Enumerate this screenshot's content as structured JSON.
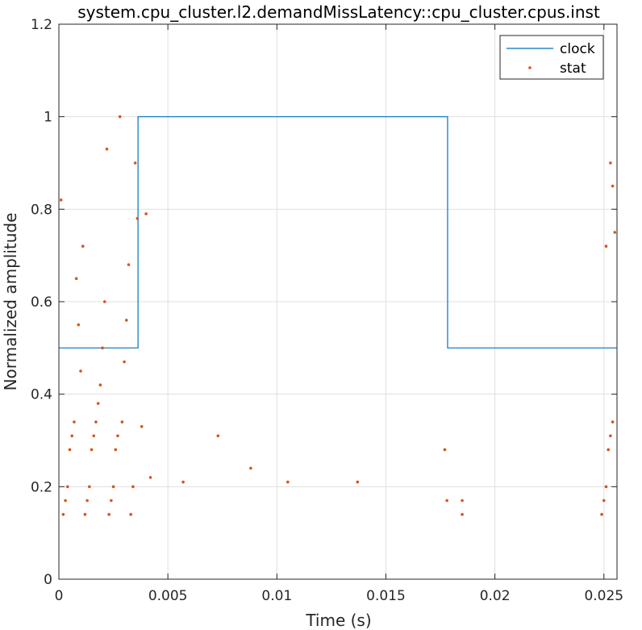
{
  "chart_data": {
    "type": "line",
    "title": "system.cpu_cluster.l2.demandMissLatency::cpu_cluster.cpus.inst",
    "xlabel": "Time (s)",
    "ylabel": "Normalized amplitude",
    "xlim": [
      0,
      0.0256
    ],
    "ylim": [
      0,
      1.2
    ],
    "x_ticks": [
      0,
      0.005,
      0.01,
      0.015,
      0.02,
      0.025
    ],
    "x_tick_labels": [
      "0",
      "0.005",
      "0.01",
      "0.015",
      "0.02",
      "0.025"
    ],
    "y_ticks": [
      0,
      0.2,
      0.4,
      0.6,
      0.8,
      1,
      1.2
    ],
    "y_tick_labels": [
      "0",
      "0.2",
      "0.4",
      "0.6",
      "0.8",
      "1",
      "1.2"
    ],
    "grid": true,
    "legend_position": "top-right",
    "series": [
      {
        "name": "clock",
        "kind": "step-line",
        "color": "#0072BD",
        "x": [
          0,
          0.00363,
          0.00363,
          0.01783,
          0.01783,
          0.0256
        ],
        "y": [
          0.5,
          0.5,
          1.0,
          1.0,
          0.5,
          0.5
        ]
      },
      {
        "name": "stat",
        "kind": "scatter",
        "color": "#D95319",
        "points": [
          [
            0.0001,
            0.82
          ],
          [
            0.0002,
            0.14
          ],
          [
            0.0003,
            0.17
          ],
          [
            0.0004,
            0.2
          ],
          [
            0.0005,
            0.28
          ],
          [
            0.0006,
            0.31
          ],
          [
            0.0007,
            0.34
          ],
          [
            0.0008,
            0.65
          ],
          [
            0.0009,
            0.55
          ],
          [
            0.001,
            0.45
          ],
          [
            0.0011,
            0.72
          ],
          [
            0.0012,
            0.14
          ],
          [
            0.0013,
            0.17
          ],
          [
            0.0014,
            0.2
          ],
          [
            0.0015,
            0.28
          ],
          [
            0.0016,
            0.31
          ],
          [
            0.0017,
            0.34
          ],
          [
            0.0018,
            0.38
          ],
          [
            0.0019,
            0.42
          ],
          [
            0.002,
            0.5
          ],
          [
            0.0021,
            0.6
          ],
          [
            0.0022,
            0.93
          ],
          [
            0.0023,
            0.14
          ],
          [
            0.0024,
            0.17
          ],
          [
            0.0025,
            0.2
          ],
          [
            0.0026,
            0.28
          ],
          [
            0.0027,
            0.31
          ],
          [
            0.0028,
            1.0
          ],
          [
            0.0029,
            0.34
          ],
          [
            0.003,
            0.47
          ],
          [
            0.0031,
            0.56
          ],
          [
            0.0032,
            0.68
          ],
          [
            0.0033,
            0.14
          ],
          [
            0.0034,
            0.2
          ],
          [
            0.0035,
            0.9
          ],
          [
            0.0036,
            0.78
          ],
          [
            0.0038,
            0.33
          ],
          [
            0.004,
            0.79
          ],
          [
            0.0042,
            0.22
          ],
          [
            0.0057,
            0.21
          ],
          [
            0.0073,
            0.31
          ],
          [
            0.0088,
            0.24
          ],
          [
            0.0105,
            0.21
          ],
          [
            0.0137,
            0.21
          ],
          [
            0.0177,
            0.28
          ],
          [
            0.0178,
            0.17
          ],
          [
            0.0185,
            0.14
          ],
          [
            0.0185,
            0.17
          ],
          [
            0.0249,
            0.14
          ],
          [
            0.025,
            0.17
          ],
          [
            0.0251,
            0.2
          ],
          [
            0.0252,
            0.28
          ],
          [
            0.0253,
            0.31
          ],
          [
            0.0254,
            0.34
          ],
          [
            0.0251,
            0.72
          ],
          [
            0.0253,
            0.9
          ],
          [
            0.0255,
            0.75
          ],
          [
            0.0254,
            0.85
          ]
        ]
      }
    ]
  }
}
